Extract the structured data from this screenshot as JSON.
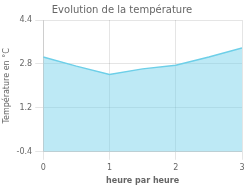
{
  "chart_data": {
    "type": "area",
    "title": "Evolution de la température",
    "xlabel": "heure par heure",
    "ylabel": "Température en °C",
    "x": [
      0,
      0.5,
      1.0,
      1.5,
      2.0,
      2.5,
      3.0
    ],
    "values": [
      3.05,
      2.72,
      2.42,
      2.62,
      2.75,
      3.05,
      3.38
    ],
    "color": "#6dcfe8",
    "xlim": [
      0,
      3
    ],
    "xticks": [
      0,
      1,
      2,
      3
    ],
    "ylim": [
      -0.4,
      4.4
    ],
    "yticks": [
      -0.4,
      1.2,
      2.8,
      4.4
    ],
    "grid": true
  }
}
